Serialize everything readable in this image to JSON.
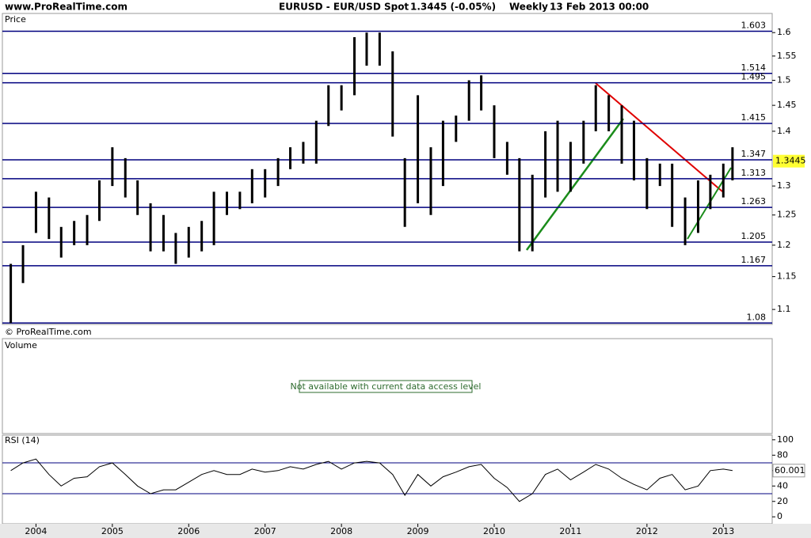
{
  "header": {
    "site": "www.ProRealTime.com",
    "symbol": "EURUSD - EUR/USD Spot",
    "price_change": "1.3445 (-0.05%)",
    "period": "Weekly",
    "date": "13 Feb 2013 00:00"
  },
  "volume_panel": {
    "label": "Volume",
    "message": "Not available with current data access level"
  },
  "chart_data": {
    "type": "hilo",
    "title": "Price",
    "copyright": "© ProRealTime.com",
    "color": "#000000",
    "x": [
      2003.67,
      2003.83,
      2004.0,
      2004.17,
      2004.33,
      2004.5,
      2004.67,
      2004.83,
      2005.0,
      2005.17,
      2005.33,
      2005.5,
      2005.67,
      2005.83,
      2006.0,
      2006.17,
      2006.33,
      2006.5,
      2006.67,
      2006.83,
      2007.0,
      2007.17,
      2007.33,
      2007.5,
      2007.67,
      2007.83,
      2008.0,
      2008.17,
      2008.33,
      2008.5,
      2008.67,
      2008.83,
      2009.0,
      2009.17,
      2009.33,
      2009.5,
      2009.67,
      2009.83,
      2010.0,
      2010.17,
      2010.33,
      2010.5,
      2010.67,
      2010.83,
      2011.0,
      2011.17,
      2011.33,
      2011.5,
      2011.67,
      2011.83,
      2012.0,
      2012.17,
      2012.33,
      2012.5,
      2012.67,
      2012.83,
      2013.0,
      2013.12
    ],
    "high": [
      1.17,
      1.2,
      1.29,
      1.28,
      1.23,
      1.24,
      1.25,
      1.31,
      1.37,
      1.35,
      1.31,
      1.27,
      1.25,
      1.22,
      1.23,
      1.24,
      1.29,
      1.29,
      1.29,
      1.33,
      1.33,
      1.35,
      1.37,
      1.38,
      1.42,
      1.49,
      1.49,
      1.59,
      1.6,
      1.6,
      1.56,
      1.35,
      1.47,
      1.37,
      1.42,
      1.43,
      1.5,
      1.51,
      1.45,
      1.38,
      1.35,
      1.32,
      1.4,
      1.42,
      1.38,
      1.42,
      1.49,
      1.47,
      1.45,
      1.42,
      1.35,
      1.34,
      1.34,
      1.28,
      1.31,
      1.32,
      1.34,
      1.37
    ],
    "low": [
      1.08,
      1.14,
      1.22,
      1.21,
      1.18,
      1.2,
      1.2,
      1.24,
      1.3,
      1.28,
      1.25,
      1.19,
      1.19,
      1.17,
      1.18,
      1.19,
      1.2,
      1.25,
      1.26,
      1.27,
      1.28,
      1.3,
      1.33,
      1.34,
      1.34,
      1.41,
      1.44,
      1.47,
      1.53,
      1.53,
      1.39,
      1.23,
      1.27,
      1.25,
      1.3,
      1.38,
      1.42,
      1.44,
      1.35,
      1.32,
      1.19,
      1.19,
      1.28,
      1.29,
      1.29,
      1.34,
      1.4,
      1.4,
      1.34,
      1.31,
      1.26,
      1.3,
      1.23,
      1.2,
      1.22,
      1.26,
      1.28,
      1.31
    ],
    "xlim": [
      2003.56,
      2013.64
    ],
    "xticks": [
      2004,
      2005,
      2006,
      2007,
      2008,
      2009,
      2010,
      2011,
      2012,
      2013
    ],
    "ylim": [
      1.078,
      1.642
    ],
    "yticks": [
      1.1,
      1.15,
      1.2,
      1.25,
      1.3,
      1.4,
      1.45,
      1.5,
      1.55,
      1.6
    ],
    "log": true,
    "levels": [
      1.603,
      1.514,
      1.495,
      1.415,
      1.347,
      1.313,
      1.263,
      1.205,
      1.167,
      1.08
    ],
    "level_color": "#00007f",
    "last_price": 1.3445,
    "rsi": {
      "title": "RSI (14)",
      "values": [
        60,
        70,
        75,
        55,
        40,
        50,
        52,
        65,
        70,
        55,
        40,
        30,
        35,
        35,
        45,
        55,
        60,
        55,
        55,
        62,
        58,
        60,
        65,
        62,
        68,
        72,
        62,
        70,
        72,
        70,
        55,
        28,
        55,
        40,
        52,
        58,
        65,
        68,
        50,
        38,
        20,
        30,
        55,
        62,
        48,
        58,
        68,
        62,
        50,
        42,
        35,
        50,
        55,
        35,
        40,
        60,
        62,
        60
      ],
      "ylim": [
        -9,
        106
      ],
      "yticks": [
        0,
        20,
        40,
        60,
        80,
        100
      ],
      "levels": [
        30,
        70
      ],
      "last": 60.001
    }
  }
}
